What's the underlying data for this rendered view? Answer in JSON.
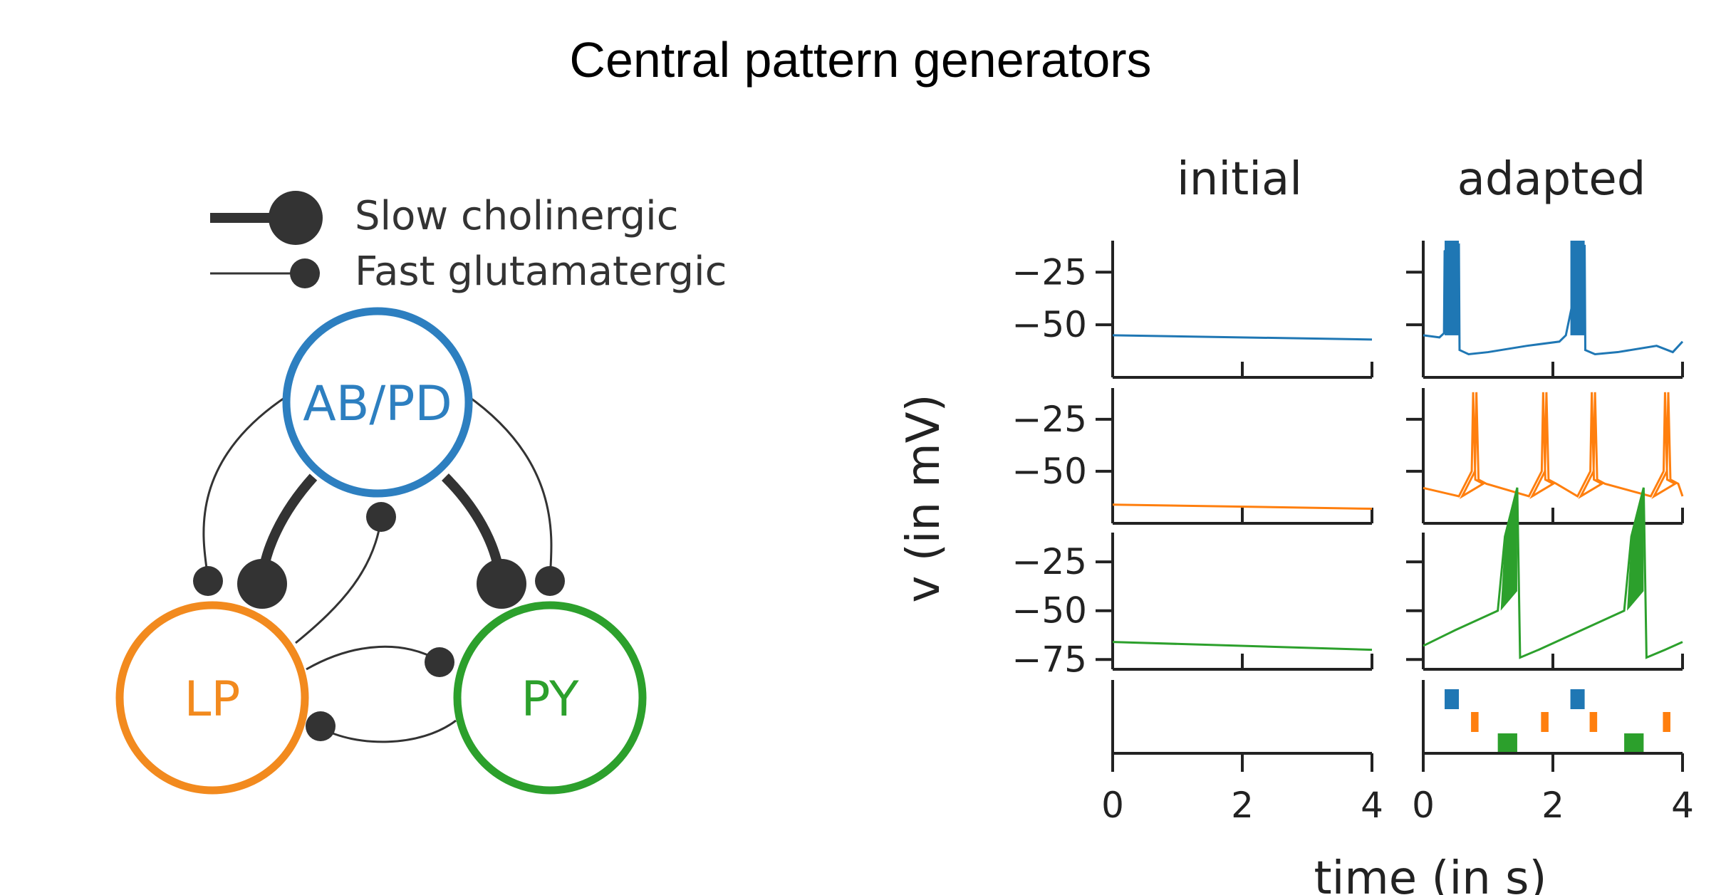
{
  "page_title": "Central pattern generators",
  "legend": {
    "slow_label": "Slow cholinergic",
    "fast_label": "Fast glutamatergic"
  },
  "network": {
    "nodes": [
      {
        "id": "abpd",
        "label": "AB/PD",
        "color": "#2d7fc0"
      },
      {
        "id": "lp",
        "label": "LP",
        "color": "#f28a1e"
      },
      {
        "id": "py",
        "label": "PY",
        "color": "#2ca02c"
      }
    ],
    "synapse_color": "#333333"
  },
  "chart_data": {
    "type": "line",
    "columns": [
      "initial",
      "adapted"
    ],
    "ylabel": "v (in mV)",
    "xlabel": "time (in s)",
    "xlim": [
      0,
      4
    ],
    "xticks": [
      0,
      2,
      4
    ],
    "panels": [
      {
        "neuron": "AB/PD",
        "color": "#1f77b4",
        "ylim": [
          -75,
          -10
        ],
        "yticks": [
          -25,
          -50
        ],
        "initial": {
          "x": [
            0,
            4
          ],
          "y": [
            -55,
            -57
          ]
        },
        "adapted": {
          "baseline": [
            [
              0,
              -55
            ],
            [
              0.25,
              -56
            ],
            [
              0.32,
              -54
            ],
            [
              0.33,
              -15
            ],
            [
              0.55,
              -12
            ],
            [
              0.56,
              -62
            ],
            [
              0.7,
              -64
            ],
            [
              1.0,
              -63
            ],
            [
              1.6,
              -60
            ],
            [
              2.1,
              -58
            ],
            [
              2.2,
              -55
            ]
          ],
          "bursts": [
            [
              0.33,
              0.55
            ],
            [
              2.27,
              2.49
            ]
          ],
          "burst_top": -10,
          "burst_bottom": -55,
          "tail": [
            [
              2.49,
              -12
            ],
            [
              2.5,
              -62
            ],
            [
              2.65,
              -64
            ],
            [
              3.0,
              -63
            ],
            [
              3.6,
              -60
            ],
            [
              3.85,
              -63
            ],
            [
              4.0,
              -58
            ]
          ]
        }
      },
      {
        "neuron": "LP",
        "color": "#ff7f0e",
        "ylim": [
          -75,
          -10
        ],
        "yticks": [
          -25,
          -50
        ],
        "initial": {
          "x": [
            0,
            4
          ],
          "y": [
            -66,
            -68
          ]
        },
        "adapted": {
          "spike_times": [
            0.77,
            0.82,
            1.85,
            1.9,
            2.6,
            2.65,
            3.73,
            3.78
          ],
          "spike_peak": -12,
          "base": -62
        }
      },
      {
        "neuron": "PY",
        "color": "#2ca02c",
        "ylim": [
          -80,
          -10
        ],
        "yticks": [
          -25,
          -50,
          -75
        ],
        "initial": {
          "x": [
            0,
            4
          ],
          "y": [
            -66,
            -70
          ]
        },
        "adapted": {
          "bursts": [
            [
              1.15,
              1.45
            ],
            [
              3.1,
              3.4
            ]
          ],
          "burst_top": -12,
          "base": -70
        }
      }
    ],
    "raster": {
      "abpd": [
        [
          0.33,
          0.55
        ],
        [
          2.27,
          2.49
        ]
      ],
      "lp": [
        0.77,
        0.82,
        1.85,
        1.9,
        2.6,
        2.65,
        3.73,
        3.78
      ],
      "py": [
        [
          1.15,
          1.45
        ],
        [
          3.1,
          3.4
        ]
      ]
    }
  }
}
